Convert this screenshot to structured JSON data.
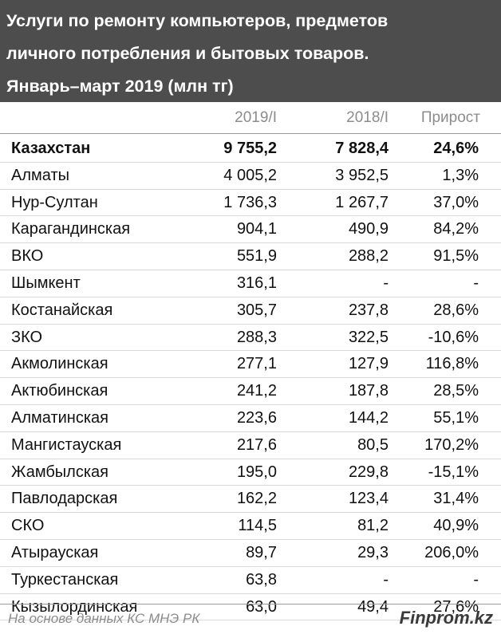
{
  "title_lines": [
    "Услуги по ремонту компьютеров, предметов",
    "личного потребления и бытовых товаров.",
    "Январь–март 2019 (млн тг)"
  ],
  "chart_data": {
    "type": "table",
    "columns": [
      "",
      "2019/I",
      "2018/I",
      "Прирост"
    ],
    "rows": [
      {
        "name": "Казахстан",
        "v2019": "9 755,2",
        "v2018": "7 828,4",
        "growth": "24,6%"
      },
      {
        "name": "Алматы",
        "v2019": "4 005,2",
        "v2018": "3 952,5",
        "growth": "1,3%"
      },
      {
        "name": "Нур-Султан",
        "v2019": "1 736,3",
        "v2018": "1 267,7",
        "growth": "37,0%"
      },
      {
        "name": "Карагандинская",
        "v2019": "904,1",
        "v2018": "490,9",
        "growth": "84,2%"
      },
      {
        "name": "ВКО",
        "v2019": "551,9",
        "v2018": "288,2",
        "growth": "91,5%"
      },
      {
        "name": "Шымкент",
        "v2019": "316,1",
        "v2018": "-",
        "growth": "-"
      },
      {
        "name": "Костанайская",
        "v2019": "305,7",
        "v2018": "237,8",
        "growth": "28,6%"
      },
      {
        "name": "ЗКО",
        "v2019": "288,3",
        "v2018": "322,5",
        "growth": "-10,6%"
      },
      {
        "name": "Акмолинская",
        "v2019": "277,1",
        "v2018": "127,9",
        "growth": "116,8%"
      },
      {
        "name": "Актюбинская",
        "v2019": "241,2",
        "v2018": "187,8",
        "growth": "28,5%"
      },
      {
        "name": "Алматинская",
        "v2019": "223,6",
        "v2018": "144,2",
        "growth": "55,1%"
      },
      {
        "name": "Мангистауская",
        "v2019": "217,6",
        "v2018": "80,5",
        "growth": "170,2%"
      },
      {
        "name": "Жамбылская",
        "v2019": "195,0",
        "v2018": "229,8",
        "growth": "-15,1%"
      },
      {
        "name": "Павлодарская",
        "v2019": "162,2",
        "v2018": "123,4",
        "growth": "31,4%"
      },
      {
        "name": "СКО",
        "v2019": "114,5",
        "v2018": "81,2",
        "growth": "40,9%"
      },
      {
        "name": "Атырауская",
        "v2019": "89,7",
        "v2018": "29,3",
        "growth": "206,0%"
      },
      {
        "name": "Туркестанская",
        "v2019": "63,8",
        "v2018": "-",
        "growth": "-"
      },
      {
        "name": "Кызылординская",
        "v2019": "63,0",
        "v2018": "49,4",
        "growth": "27,6%"
      }
    ]
  },
  "footer": {
    "source": "На основе данных КС МНЭ РК",
    "brand": "Finprom.kz"
  }
}
